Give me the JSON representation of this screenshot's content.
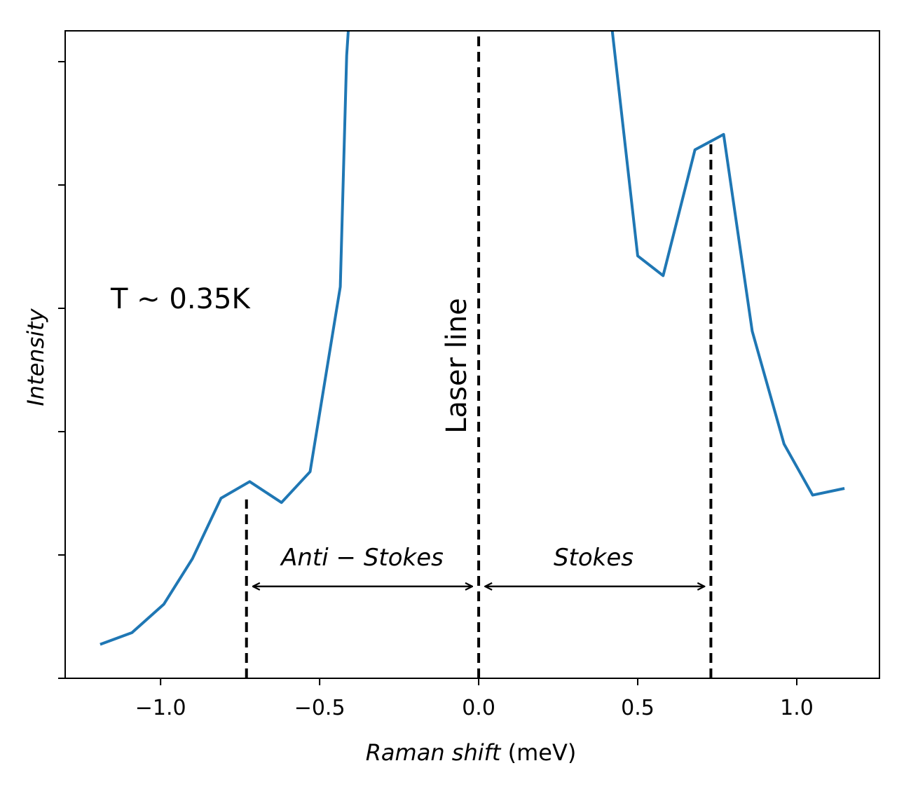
{
  "chart_data": {
    "type": "line",
    "title": "",
    "xlabel_italic": "Raman shift",
    "xlabel_unit": "(meV)",
    "ylabel": "Intensity",
    "xlim": [
      -1.3,
      1.26
    ],
    "ylim": [
      0,
      1.05
    ],
    "x_ticks": [
      -1.0,
      -0.5,
      0.0,
      0.5,
      1.0
    ],
    "x_tick_labels": [
      "−1.0",
      "−0.5",
      "0.0",
      "0.5",
      "1.0"
    ],
    "y_ticks": [
      0,
      0.2,
      0.4,
      0.6,
      0.8,
      1.0
    ],
    "color": "#1f77b4",
    "series": [
      {
        "name": "spectrum",
        "x": [
          -1.19,
          -1.09,
          -0.99,
          -0.9,
          -0.81,
          -0.72,
          -0.62,
          -0.53,
          -0.435,
          -0.415,
          -0.41
        ],
        "y": [
          0.055,
          0.074,
          0.12,
          0.194,
          0.292,
          0.319,
          0.285,
          0.335,
          0.635,
          1.01,
          1.05
        ]
      },
      {
        "name": "spectrum-right",
        "x": [
          0.42,
          0.5,
          0.58,
          0.68,
          0.77,
          0.86,
          0.96,
          1.05,
          1.15
        ],
        "y": [
          1.05,
          0.685,
          0.653,
          0.857,
          0.882,
          0.563,
          0.38,
          0.297,
          0.308
        ]
      }
    ],
    "vlines": [
      {
        "name": "anti-stokes-line",
        "x": -0.73,
        "y_top": 0.29
      },
      {
        "name": "laser-line",
        "x": 0.0,
        "y_top": 1.05
      },
      {
        "name": "stokes-line",
        "x": 0.73,
        "y_top": 0.872
      }
    ],
    "arrows": [
      {
        "name": "anti-stokes-arrow",
        "x1": -0.71,
        "x2": -0.02,
        "y": 0.149
      },
      {
        "name": "stokes-arrow",
        "x1": 0.02,
        "x2": 0.71,
        "y": 0.149
      }
    ],
    "annotations": {
      "temperature": "T ~ 0.35K",
      "laser_line": "Laser line",
      "anti_stokes": "Anti − Stokes",
      "stokes": "Stokes"
    }
  }
}
